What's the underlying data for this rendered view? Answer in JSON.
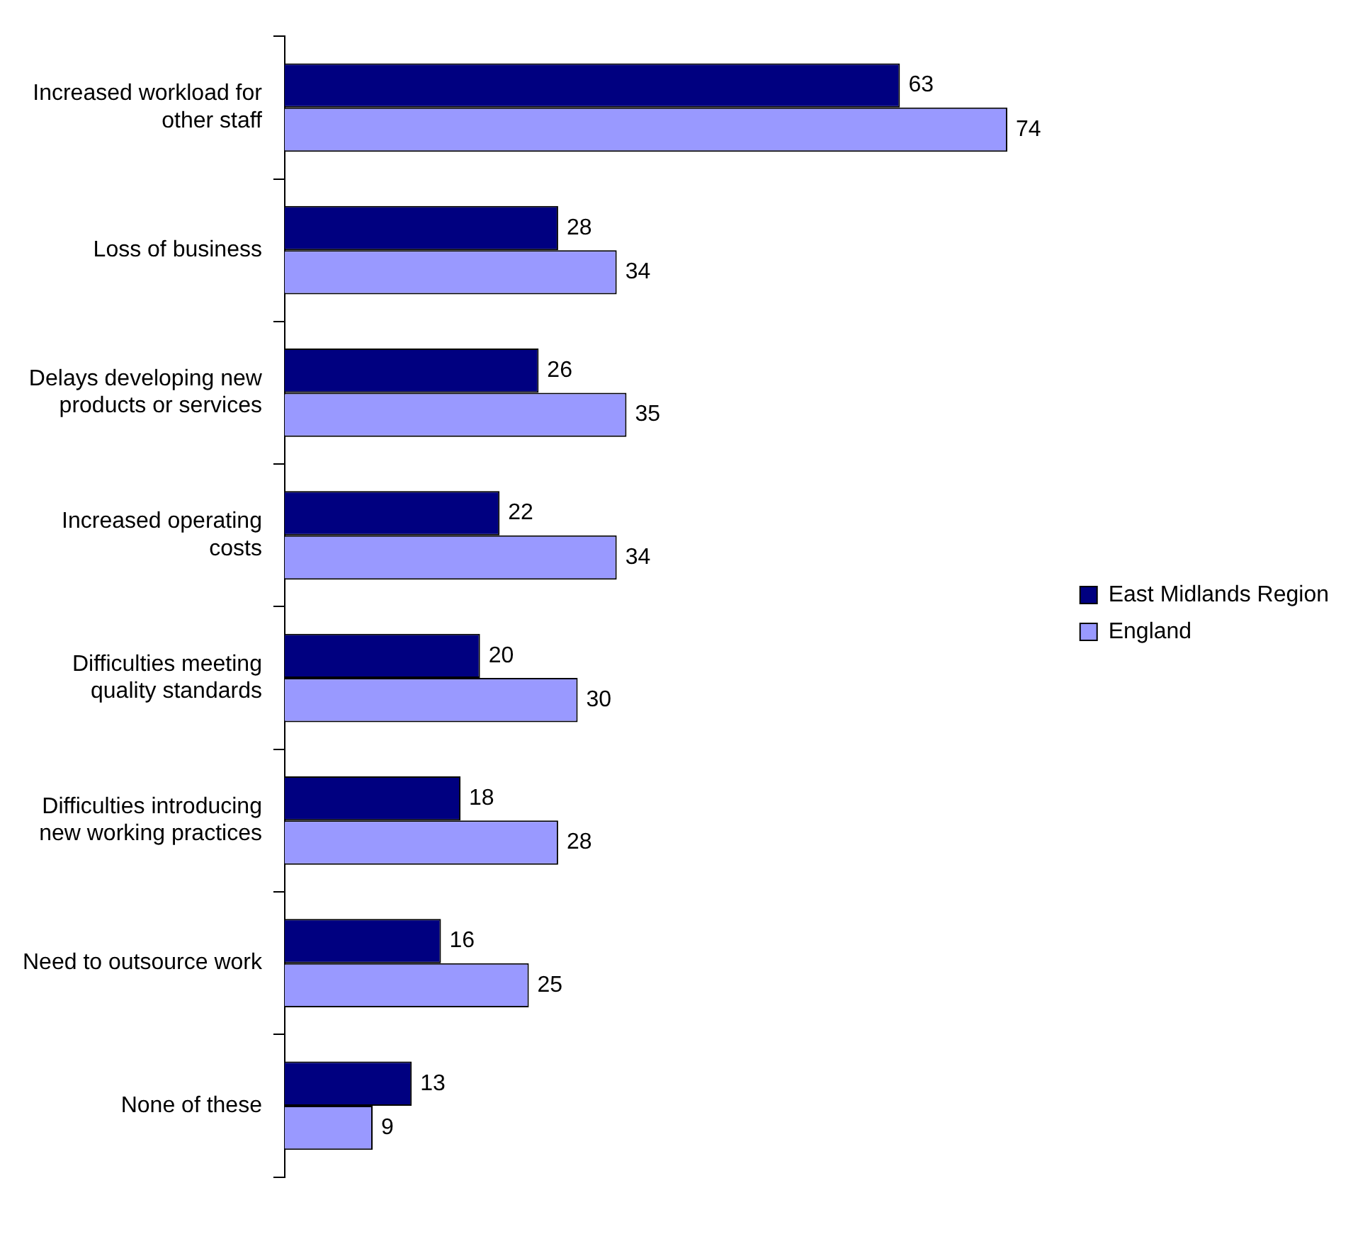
{
  "chart_data": {
    "type": "bar",
    "orientation": "horizontal",
    "categories": [
      "Increased workload for other staff",
      "Loss of business",
      "Delays developing new products or services",
      "Increased operating costs",
      "Difficulties meeting quality standards",
      "Difficulties introducing new working practices",
      "Need to outsource work",
      "None of these"
    ],
    "series": [
      {
        "name": "East Midlands Region",
        "color": "#000080",
        "values": [
          63,
          28,
          26,
          22,
          20,
          18,
          16,
          13
        ]
      },
      {
        "name": "England",
        "color": "#9999ff",
        "values": [
          74,
          34,
          35,
          34,
          30,
          28,
          25,
          9
        ]
      }
    ],
    "data_labels": true,
    "legend": "right",
    "grid": false
  }
}
